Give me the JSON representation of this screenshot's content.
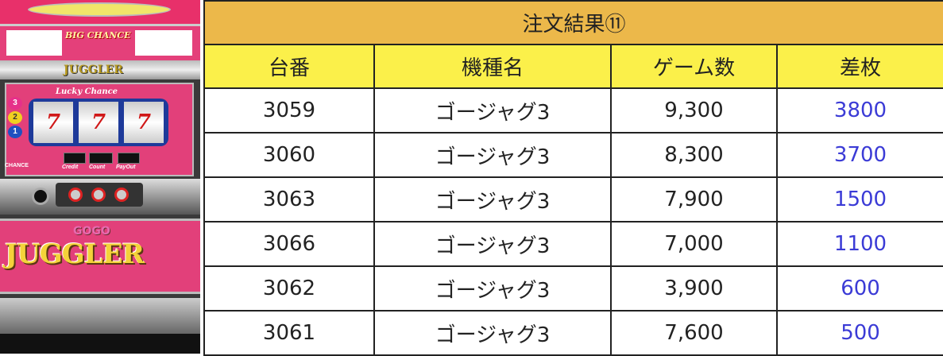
{
  "machine_image": {
    "logo_text": "GOGO JUGGLER",
    "top_logo": "JUGGLER",
    "reel_title": "Lucky Chance",
    "big_chance": "BIG CHANCE",
    "side_labels": [
      "Credit",
      "Count",
      "PayOut"
    ],
    "chance": "CHANCE",
    "bet_numbers": [
      "3",
      "2",
      "1"
    ],
    "reel_symbol": "7"
  },
  "table": {
    "title": "注文結果⑪",
    "headers": [
      "台番",
      "機種名",
      "ゲーム数",
      "差枚"
    ],
    "rows": [
      {
        "number": "3059",
        "model": "ゴージャグ3",
        "games": "9,300",
        "diff": "3800"
      },
      {
        "number": "3060",
        "model": "ゴージャグ3",
        "games": "8,300",
        "diff": "3700"
      },
      {
        "number": "3063",
        "model": "ゴージャグ3",
        "games": "7,900",
        "diff": "1500"
      },
      {
        "number": "3066",
        "model": "ゴージャグ3",
        "games": "7,000",
        "diff": "1100"
      },
      {
        "number": "3062",
        "model": "ゴージャグ3",
        "games": "3,900",
        "diff": "600"
      },
      {
        "number": "3061",
        "model": "ゴージャグ3",
        "games": "7,600",
        "diff": "500"
      }
    ]
  },
  "colors": {
    "title_bg": "#ecb84a",
    "header_bg": "#fbf04a",
    "diff_text": "#3b3bd6"
  }
}
